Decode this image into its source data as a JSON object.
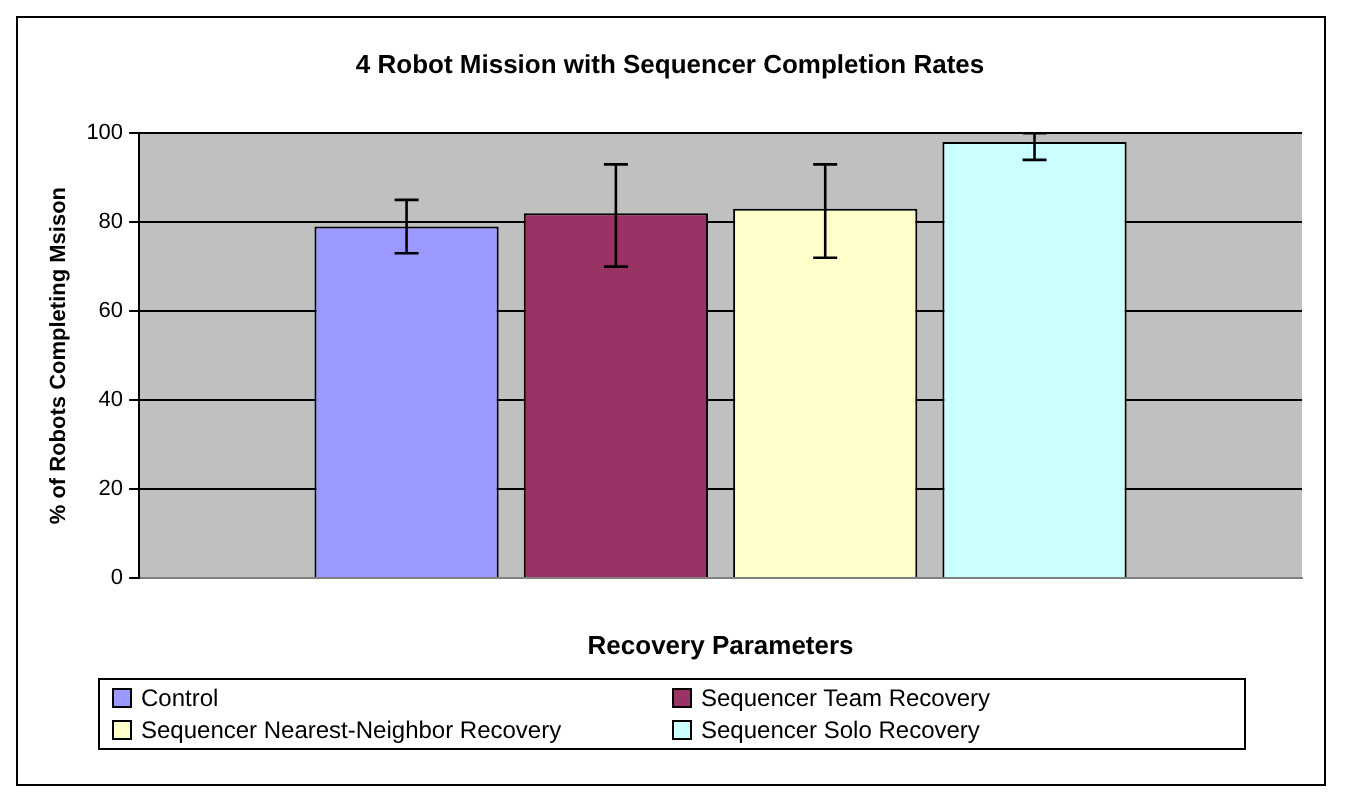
{
  "chart_data": {
    "type": "bar",
    "title": "4 Robot Mission with Sequencer Completion Rates",
    "xlabel": "Recovery Parameters",
    "ylabel": "% of Robots Completing Msison",
    "categories": [
      null
    ],
    "series": [
      {
        "name": "Control",
        "color": "#9999ff",
        "values": [
          79
        ],
        "errors": [
          [
            73,
            85
          ]
        ]
      },
      {
        "name": "Sequencer Team Recovery",
        "color": "#993366",
        "values": [
          82
        ],
        "errors": [
          [
            70,
            93
          ]
        ]
      },
      {
        "name": "Sequencer Nearest-Neighbor Recovery",
        "color": "#ffffcc",
        "values": [
          83
        ],
        "errors": [
          [
            72,
            93
          ]
        ]
      },
      {
        "name": "Sequencer Solo Recovery",
        "color": "#ccffff",
        "values": [
          98
        ],
        "errors": [
          [
            94,
            100
          ]
        ]
      }
    ],
    "ylim": [
      0,
      100
    ],
    "yticks": [
      0,
      20,
      40,
      60,
      80,
      100
    ],
    "grid": "y",
    "legend": "bottom"
  }
}
